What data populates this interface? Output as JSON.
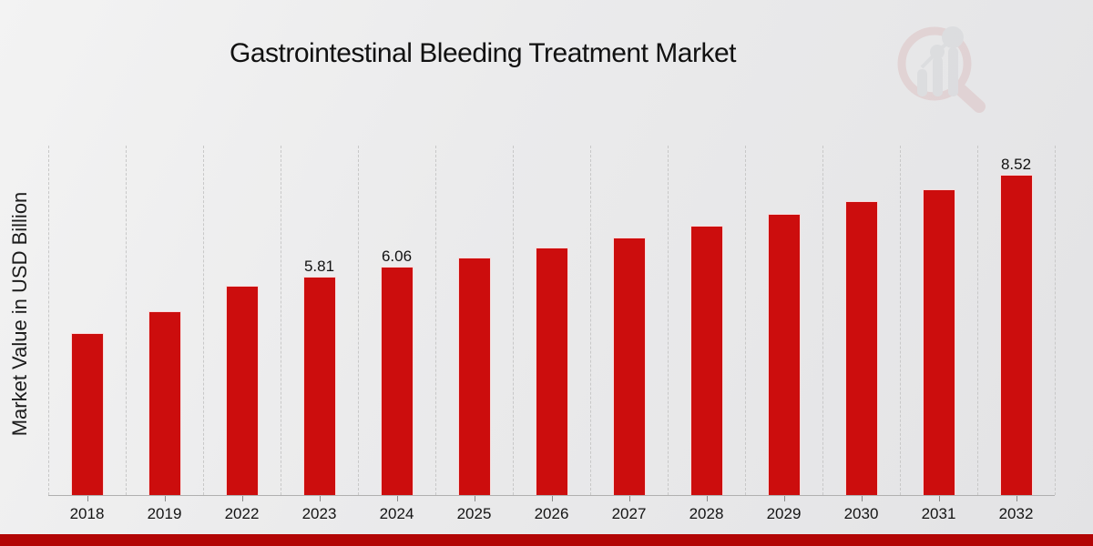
{
  "chart_data": {
    "type": "bar",
    "title": "Gastrointestinal Bleeding Treatment Market",
    "xlabel": "",
    "ylabel": "Market Value in USD Billion",
    "categories": [
      "2018",
      "2019",
      "2022",
      "2023",
      "2024",
      "2025",
      "2026",
      "2027",
      "2028",
      "2029",
      "2030",
      "2031",
      "2032"
    ],
    "values": [
      4.3,
      4.88,
      5.56,
      5.81,
      6.06,
      6.31,
      6.58,
      6.85,
      7.16,
      7.48,
      7.82,
      8.13,
      8.52
    ],
    "value_labels": [
      null,
      null,
      null,
      "5.81",
      "6.06",
      null,
      null,
      null,
      null,
      null,
      null,
      null,
      "8.52"
    ],
    "ylim": [
      0,
      9.32
    ],
    "grid": "vertical-dashed",
    "legend": "none",
    "bar_color": "#cc0d0d"
  },
  "colors": {
    "bar": "#cc0d0d",
    "bottom_strip": "#b20505",
    "gridline": "#c8c8c8",
    "axis": "#b0b0b0",
    "logo_ring": "#cf8f8f",
    "logo_bars": "#b9bcc0",
    "text": "#111111"
  },
  "icons": {
    "logo": "magnifier-barchart-watermark"
  }
}
